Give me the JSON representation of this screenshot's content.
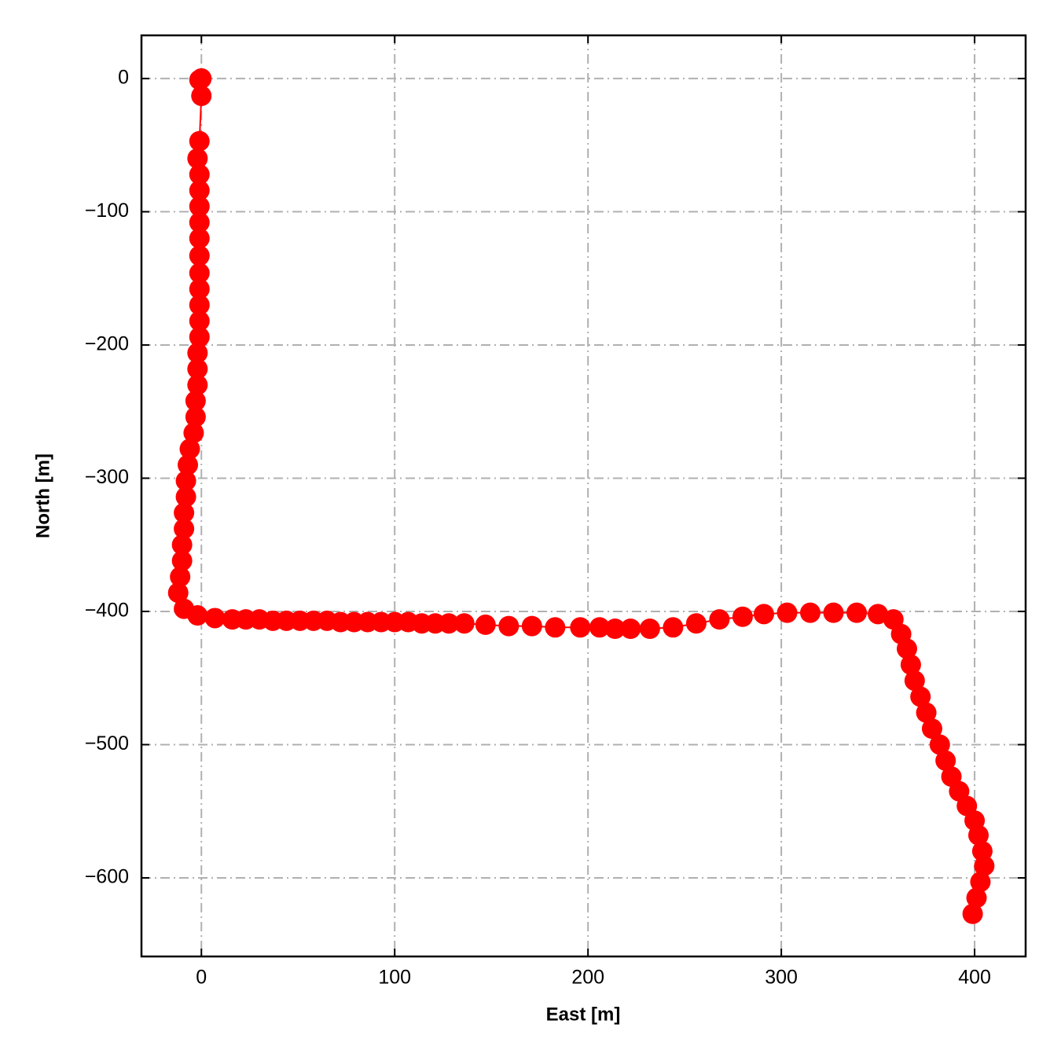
{
  "chart_data": {
    "type": "line",
    "color": "#ff0000",
    "xlabel": "East [m]",
    "ylabel": "North [m]",
    "xlim": [
      -31,
      426.4
    ],
    "ylim": [
      -659,
      32.4
    ],
    "xticks": [
      0,
      100,
      200,
      300,
      400
    ],
    "yticks": [
      0,
      {
        "value": -100,
        "label": "−100"
      },
      {
        "value": -200,
        "label": "−200"
      },
      {
        "value": -300,
        "label": "−300"
      },
      {
        "value": -400,
        "label": "−400"
      },
      {
        "value": -500,
        "label": "−500"
      },
      {
        "value": -600,
        "label": "−600"
      }
    ],
    "grid": true,
    "x": [
      0,
      0,
      -1,
      0,
      -1,
      -2,
      -1,
      -1,
      -1,
      -1,
      -1,
      -1,
      -1,
      -1,
      -1,
      -1,
      -1,
      -2,
      -2,
      -2,
      -3,
      -3,
      -4,
      -6,
      -7,
      -8,
      -8,
      -9,
      -9,
      -10,
      -10,
      -11,
      -12,
      -9,
      -2,
      7,
      16,
      23,
      30,
      37,
      44,
      51,
      58,
      65,
      72,
      79,
      86,
      93,
      100,
      107,
      114,
      121,
      128,
      136,
      147,
      159,
      171,
      183,
      196,
      206,
      214,
      222,
      232,
      244,
      256,
      268,
      280,
      291,
      303,
      315,
      327,
      339,
      350,
      358,
      362,
      365,
      367,
      369,
      372,
      375,
      378,
      382,
      385,
      388,
      392,
      396,
      400,
      402,
      404,
      405,
      403,
      401,
      399
    ],
    "values": [
      0,
      0,
      -1,
      -13,
      -47,
      -60,
      -72,
      -84,
      -96,
      -108,
      -120,
      -133,
      -146,
      -158,
      -170,
      -182,
      -194,
      -206,
      -218,
      -230,
      -242,
      -254,
      -266,
      -278,
      -290,
      -302,
      -314,
      -326,
      -338,
      -350,
      -362,
      -374,
      -386,
      -398,
      -403,
      -405,
      -406,
      -406,
      -406,
      -407,
      -407,
      -407,
      -407,
      -407,
      -408,
      -408,
      -408,
      -408,
      -408,
      -408,
      -409,
      -409,
      -409,
      -409,
      -410,
      -411,
      -411,
      -412,
      -412,
      -412,
      -413,
      -413,
      -413,
      -412,
      -409,
      -406,
      -404,
      -402,
      -401,
      -401,
      -401,
      -401,
      -402,
      -406,
      -417,
      -428,
      -440,
      -452,
      -464,
      -476,
      -488,
      -500,
      -512,
      -524,
      -535,
      -546,
      -557,
      -568,
      -580,
      -591,
      -603,
      -615,
      -627
    ]
  }
}
